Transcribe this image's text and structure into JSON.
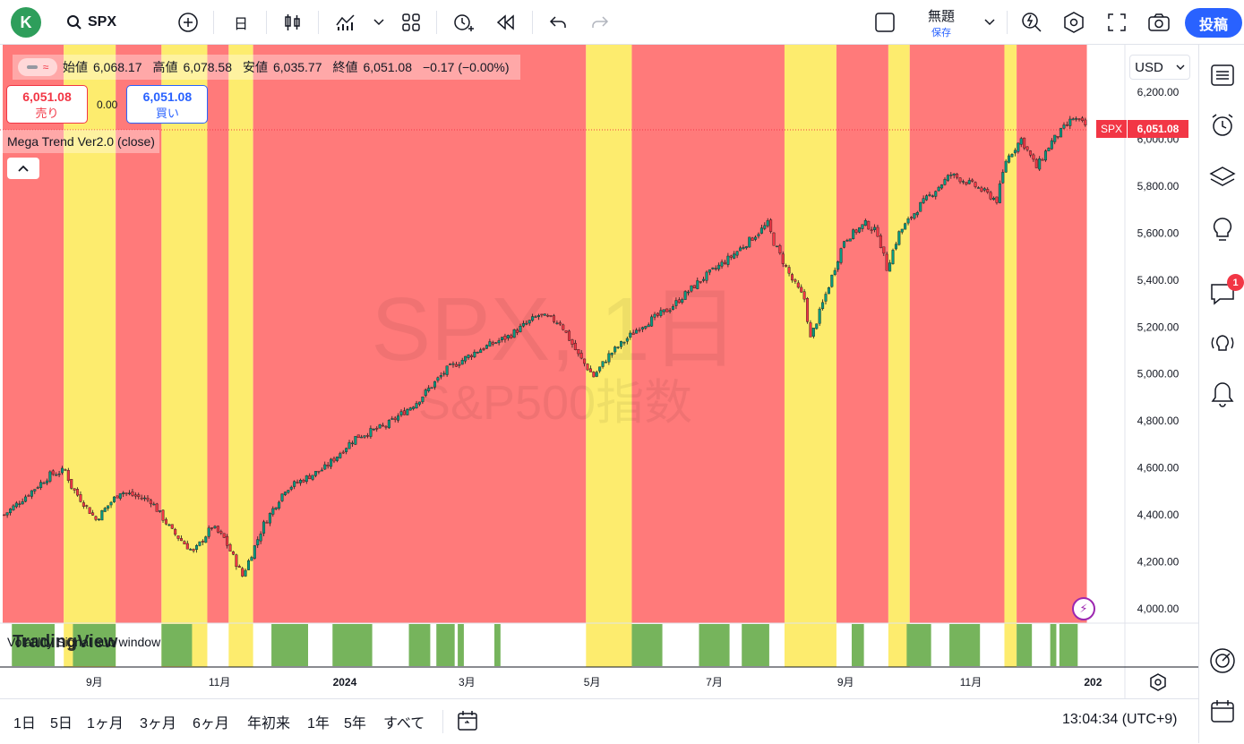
{
  "app": {
    "avatar_letter": "K",
    "symbol": "SPX",
    "interval": "日",
    "layout_name": "無題",
    "layout_save": "保存",
    "post_label": "投稿"
  },
  "legend": {
    "open_label": "始値",
    "open": "6,068.17",
    "high_label": "高値",
    "high": "6,078.58",
    "low_label": "安値",
    "low": "6,035.77",
    "close_label": "終値",
    "close": "6,051.08",
    "change": "−0.17 (−0.00%)",
    "sell_price": "6,051.08",
    "sell_label": "売り",
    "buy_price": "6,051.08",
    "buy_label": "買い",
    "spread": "0.00",
    "indicator": "Mega Trend Ver2.0 (close)",
    "sub_indicator": "Volatility Signal sub window",
    "tv_logo": "TradingView"
  },
  "watermark": {
    "line1": "SPX, 1日",
    "line2": "S&P500指数"
  },
  "currency": "USD",
  "last_price_tag": {
    "symbol": "SPX",
    "price": "6,051.08"
  },
  "colors": {
    "red_zone": "#ff7a7a",
    "yellow_zone": "#fdec6e",
    "signal_green": "#76b45c",
    "up": "#089981",
    "down": "#f23645",
    "accent": "#2962ff"
  },
  "chart_data": {
    "type": "candlestick",
    "symbol": "SPX",
    "ylim": [
      3900,
      6300
    ],
    "y_ticks": [
      "6,200.00",
      "6,000.00",
      "5,800.00",
      "5,600.00",
      "5,400.00",
      "5,200.00",
      "5,000.00",
      "4,800.00",
      "4,600.00",
      "4,400.00",
      "4,200.00",
      "4,000.00"
    ],
    "y_tick_values": [
      6200,
      6000,
      5800,
      5600,
      5400,
      5200,
      5000,
      4800,
      4600,
      4400,
      4200,
      4000
    ],
    "x_ticks": [
      "9月",
      "11月",
      "2024",
      "3月",
      "5月",
      "7月",
      "9月",
      "11月",
      "202"
    ],
    "x_tick_index": [
      30,
      71,
      112,
      152,
      193,
      233,
      276,
      317,
      357
    ],
    "bar_count": 355,
    "close_anchors": [
      [
        0,
        4400
      ],
      [
        15,
        4570
      ],
      [
        20,
        4590
      ],
      [
        22,
        4520
      ],
      [
        30,
        4380
      ],
      [
        38,
        4500
      ],
      [
        48,
        4460
      ],
      [
        55,
        4330
      ],
      [
        62,
        4240
      ],
      [
        68,
        4350
      ],
      [
        72,
        4300
      ],
      [
        78,
        4140
      ],
      [
        85,
        4360
      ],
      [
        92,
        4510
      ],
      [
        105,
        4600
      ],
      [
        115,
        4730
      ],
      [
        125,
        4780
      ],
      [
        135,
        4880
      ],
      [
        145,
        5020
      ],
      [
        155,
        5100
      ],
      [
        165,
        5160
      ],
      [
        175,
        5250
      ],
      [
        182,
        5220
      ],
      [
        188,
        5080
      ],
      [
        193,
        4990
      ],
      [
        198,
        5080
      ],
      [
        208,
        5200
      ],
      [
        218,
        5280
      ],
      [
        228,
        5400
      ],
      [
        238,
        5500
      ],
      [
        245,
        5580
      ],
      [
        250,
        5640
      ],
      [
        252,
        5560
      ],
      [
        258,
        5400
      ],
      [
        262,
        5320
      ],
      [
        264,
        5150
      ],
      [
        268,
        5300
      ],
      [
        275,
        5570
      ],
      [
        282,
        5640
      ],
      [
        286,
        5600
      ],
      [
        289,
        5450
      ],
      [
        293,
        5600
      ],
      [
        300,
        5720
      ],
      [
        310,
        5850
      ],
      [
        318,
        5800
      ],
      [
        325,
        5740
      ],
      [
        328,
        5910
      ],
      [
        333,
        6000
      ],
      [
        338,
        5880
      ],
      [
        343,
        5990
      ],
      [
        350,
        6090
      ],
      [
        355,
        6051
      ]
    ],
    "background_zones": [
      {
        "from": 0,
        "to": 20,
        "state": "red"
      },
      {
        "from": 20,
        "to": 37,
        "state": "yellow"
      },
      {
        "from": 37,
        "to": 52,
        "state": "red"
      },
      {
        "from": 52,
        "to": 67,
        "state": "yellow"
      },
      {
        "from": 67,
        "to": 74,
        "state": "red"
      },
      {
        "from": 74,
        "to": 82,
        "state": "yellow"
      },
      {
        "from": 82,
        "to": 191,
        "state": "red"
      },
      {
        "from": 191,
        "to": 206,
        "state": "yellow"
      },
      {
        "from": 206,
        "to": 256,
        "state": "red"
      },
      {
        "from": 256,
        "to": 273,
        "state": "yellow"
      },
      {
        "from": 273,
        "to": 290,
        "state": "red"
      },
      {
        "from": 290,
        "to": 297,
        "state": "yellow"
      },
      {
        "from": 297,
        "to": 328,
        "state": "red"
      },
      {
        "from": 328,
        "to": 332,
        "state": "yellow"
      },
      {
        "from": 332,
        "to": 355,
        "state": "red"
      }
    ],
    "signal_bars": [
      [
        3,
        17
      ],
      [
        23,
        37
      ],
      [
        52,
        62
      ],
      [
        88,
        100
      ],
      [
        108,
        121
      ],
      [
        133,
        140
      ],
      [
        142,
        148
      ],
      [
        149,
        151
      ],
      [
        161,
        163
      ],
      [
        206,
        216
      ],
      [
        228,
        238
      ],
      [
        242,
        251
      ],
      [
        278,
        282
      ],
      [
        296,
        304
      ],
      [
        310,
        320
      ],
      [
        332,
        337
      ],
      [
        343,
        345
      ],
      [
        346,
        352
      ]
    ]
  },
  "bottom": {
    "ranges": [
      "1日",
      "5日",
      "1ヶ月",
      "3ヶ月",
      "6ヶ月",
      "年初来",
      "1年",
      "5年",
      "すべて"
    ],
    "clock": "13:04:34 (UTC+9)"
  }
}
